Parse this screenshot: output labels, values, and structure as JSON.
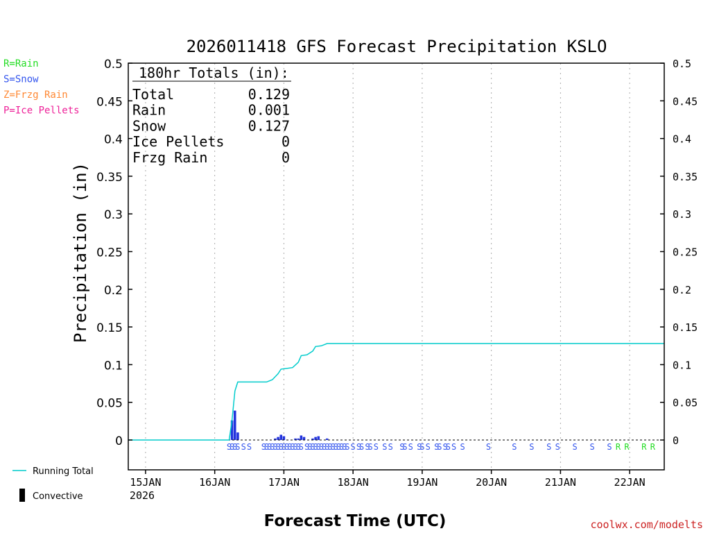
{
  "chart_data": {
    "type": "bar",
    "title": "2026011418 GFS Forecast Precipitation KSLO",
    "xlabel": "Forecast Time (UTC)",
    "ylabel": "Precipitation (in)",
    "ylim": [
      0,
      0.5
    ],
    "y_ticks": [
      0,
      0.05,
      0.1,
      0.15,
      0.2,
      0.25,
      0.3,
      0.35,
      0.4,
      0.45,
      0.5
    ],
    "y_tick_labels": [
      "0",
      "0.05",
      "0.1",
      "0.15",
      "0.2",
      "0.25",
      "0.3",
      "0.35",
      "0.4",
      "0.45",
      "0.5"
    ],
    "xlim_hours": [
      0,
      186
    ],
    "x_ticks": [
      {
        "hour": 6,
        "label": "15JAN",
        "sublabel": "2026"
      },
      {
        "hour": 30,
        "label": "16JAN"
      },
      {
        "hour": 54,
        "label": "17JAN"
      },
      {
        "hour": 78,
        "label": "18JAN"
      },
      {
        "hour": 102,
        "label": "19JAN"
      },
      {
        "hour": 126,
        "label": "20JAN"
      },
      {
        "hour": 150,
        "label": "21JAN"
      },
      {
        "hour": 174,
        "label": "22JAN"
      }
    ],
    "totals_box": {
      "header": "180hr Totals (in):",
      "rows": [
        {
          "label": "Total",
          "value": "0.129"
        },
        {
          "label": "Rain",
          "value": "0.001"
        },
        {
          "label": "Snow",
          "value": "0.127"
        },
        {
          "label": "Ice Pellets",
          "value": "0"
        },
        {
          "label": "Frzg Rain",
          "value": "0"
        }
      ]
    },
    "precip_type_legend": [
      {
        "label": "R=Rain",
        "color": "#22dd22"
      },
      {
        "label": "S=Snow",
        "color": "#3355ee"
      },
      {
        "label": "Z=Frzg Rain",
        "color": "#ff8833"
      },
      {
        "label": "P=Ice Pellets",
        "color": "#ee2299"
      }
    ],
    "series_legend": [
      {
        "label": "Running Total",
        "color": "#00cccc"
      },
      {
        "label": "Convective",
        "color": "#000000"
      }
    ],
    "bars": [
      {
        "hour": 36,
        "value": 0.026
      },
      {
        "hour": 37,
        "value": 0.039
      },
      {
        "hour": 38,
        "value": 0.01
      },
      {
        "hour": 51,
        "value": 0.002
      },
      {
        "hour": 52,
        "value": 0.004
      },
      {
        "hour": 53,
        "value": 0.007
      },
      {
        "hour": 54,
        "value": 0.005
      },
      {
        "hour": 58,
        "value": 0.002
      },
      {
        "hour": 59,
        "value": 0.002
      },
      {
        "hour": 60,
        "value": 0.006
      },
      {
        "hour": 61,
        "value": 0.004
      },
      {
        "hour": 64,
        "value": 0.002
      },
      {
        "hour": 65,
        "value": 0.004
      },
      {
        "hour": 66,
        "value": 0.005
      },
      {
        "hour": 69,
        "value": 0.002
      }
    ],
    "running_total": [
      {
        "hour": 0,
        "value": 0
      },
      {
        "hour": 35,
        "value": 0
      },
      {
        "hour": 36,
        "value": 0.026
      },
      {
        "hour": 37,
        "value": 0.065
      },
      {
        "hour": 38,
        "value": 0.077
      },
      {
        "hour": 48,
        "value": 0.077
      },
      {
        "hour": 50,
        "value": 0.08
      },
      {
        "hour": 52,
        "value": 0.088
      },
      {
        "hour": 53,
        "value": 0.094
      },
      {
        "hour": 57,
        "value": 0.096
      },
      {
        "hour": 59,
        "value": 0.103
      },
      {
        "hour": 60,
        "value": 0.112
      },
      {
        "hour": 62,
        "value": 0.113
      },
      {
        "hour": 64,
        "value": 0.118
      },
      {
        "hour": 65,
        "value": 0.124
      },
      {
        "hour": 67,
        "value": 0.125
      },
      {
        "hour": 69,
        "value": 0.128
      },
      {
        "hour": 186,
        "value": 0.128
      }
    ],
    "precip_type_markers": [
      {
        "hour": 35,
        "type": "S"
      },
      {
        "hour": 36,
        "type": "S"
      },
      {
        "hour": 37,
        "type": "S"
      },
      {
        "hour": 38,
        "type": "S"
      },
      {
        "hour": 40,
        "type": "S"
      },
      {
        "hour": 42,
        "type": "S"
      },
      {
        "hour": 47,
        "type": "S"
      },
      {
        "hour": 48,
        "type": "S"
      },
      {
        "hour": 49,
        "type": "S"
      },
      {
        "hour": 50,
        "type": "S"
      },
      {
        "hour": 51,
        "type": "S"
      },
      {
        "hour": 52,
        "type": "S"
      },
      {
        "hour": 53,
        "type": "S"
      },
      {
        "hour": 54,
        "type": "S"
      },
      {
        "hour": 55,
        "type": "S"
      },
      {
        "hour": 56,
        "type": "S"
      },
      {
        "hour": 57,
        "type": "S"
      },
      {
        "hour": 58,
        "type": "S"
      },
      {
        "hour": 59,
        "type": "S"
      },
      {
        "hour": 60,
        "type": "S"
      },
      {
        "hour": 62,
        "type": "S"
      },
      {
        "hour": 63,
        "type": "S"
      },
      {
        "hour": 64,
        "type": "S"
      },
      {
        "hour": 65,
        "type": "S"
      },
      {
        "hour": 66,
        "type": "S"
      },
      {
        "hour": 67,
        "type": "S"
      },
      {
        "hour": 68,
        "type": "S"
      },
      {
        "hour": 69,
        "type": "S"
      },
      {
        "hour": 70,
        "type": "S"
      },
      {
        "hour": 71,
        "type": "S"
      },
      {
        "hour": 72,
        "type": "S"
      },
      {
        "hour": 73,
        "type": "S"
      },
      {
        "hour": 74,
        "type": "S"
      },
      {
        "hour": 75,
        "type": "S"
      },
      {
        "hour": 76,
        "type": "S"
      },
      {
        "hour": 78,
        "type": "S"
      },
      {
        "hour": 80,
        "type": "S"
      },
      {
        "hour": 81,
        "type": "S"
      },
      {
        "hour": 83,
        "type": "S"
      },
      {
        "hour": 84,
        "type": "S"
      },
      {
        "hour": 86,
        "type": "S"
      },
      {
        "hour": 89,
        "type": "S"
      },
      {
        "hour": 91,
        "type": "S"
      },
      {
        "hour": 95,
        "type": "S"
      },
      {
        "hour": 96,
        "type": "S"
      },
      {
        "hour": 98,
        "type": "S"
      },
      {
        "hour": 101,
        "type": "S"
      },
      {
        "hour": 102,
        "type": "S"
      },
      {
        "hour": 104,
        "type": "S"
      },
      {
        "hour": 107,
        "type": "S"
      },
      {
        "hour": 108,
        "type": "S"
      },
      {
        "hour": 110,
        "type": "S"
      },
      {
        "hour": 111,
        "type": "S"
      },
      {
        "hour": 113,
        "type": "S"
      },
      {
        "hour": 116,
        "type": "S"
      },
      {
        "hour": 125,
        "type": "S"
      },
      {
        "hour": 134,
        "type": "S"
      },
      {
        "hour": 140,
        "type": "S"
      },
      {
        "hour": 146,
        "type": "S"
      },
      {
        "hour": 149,
        "type": "S"
      },
      {
        "hour": 155,
        "type": "S"
      },
      {
        "hour": 161,
        "type": "S"
      },
      {
        "hour": 167,
        "type": "S"
      },
      {
        "hour": 170,
        "type": "R"
      },
      {
        "hour": 173,
        "type": "R"
      },
      {
        "hour": 179,
        "type": "R"
      },
      {
        "hour": 182,
        "type": "R"
      }
    ]
  },
  "footer": {
    "credit": "coolwx.com/modelts"
  }
}
